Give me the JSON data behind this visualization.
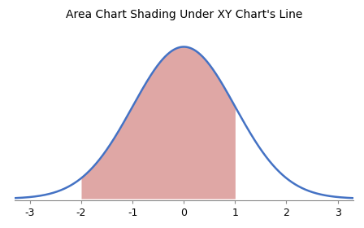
{
  "title": "Area Chart Shading Under XY Chart's Line",
  "title_fontsize": 10,
  "title_fontweight": "normal",
  "xlim": [
    -3.3,
    3.3
  ],
  "ylim": [
    -0.005,
    0.45
  ],
  "xticks": [
    -3,
    -2,
    -1,
    0,
    1,
    2,
    3
  ],
  "xtick_fontsize": 9,
  "shade_from": -2,
  "shade_to": 1,
  "line_color": "#4472C4",
  "fill_color": "#C0504D",
  "fill_alpha": 0.5,
  "line_width": 1.8,
  "background_color": "#FFFFFF",
  "mean": 0,
  "std": 1,
  "figsize": [
    4.48,
    2.8
  ],
  "dpi": 100
}
